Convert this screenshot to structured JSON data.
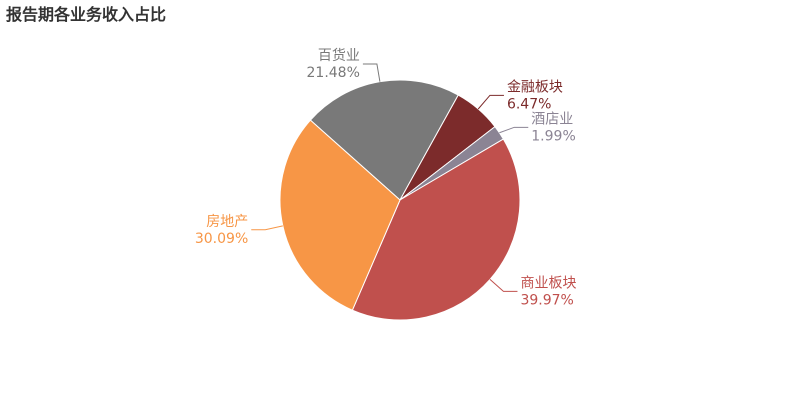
{
  "chart_data": {
    "type": "pie",
    "title": "报告期各业务收入占比",
    "categories": [
      "百货业",
      "金融板块",
      "酒店业",
      "商业板块",
      "房地产"
    ],
    "values": [
      21.48,
      6.47,
      1.99,
      39.97,
      30.09
    ],
    "value_labels": [
      "21.48%",
      "6.47%",
      "1.99%",
      "39.97%",
      "30.09%"
    ],
    "colors": [
      "#797979",
      "#7c2b2b",
      "#8b8494",
      "#c0504d",
      "#f79646"
    ]
  }
}
